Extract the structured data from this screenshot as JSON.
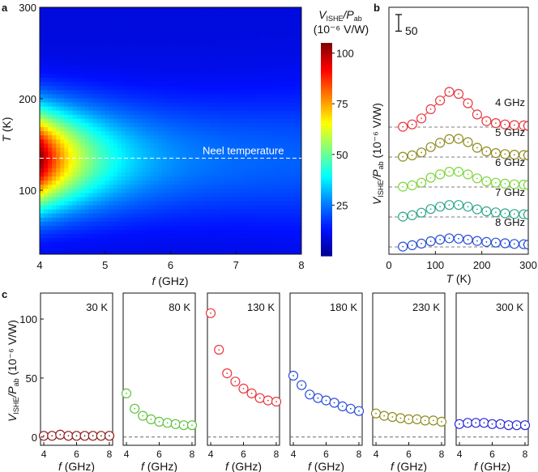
{
  "chart_data": [
    {
      "panel_label": "a",
      "type": "heatmap",
      "x_range": [
        4,
        8
      ],
      "y_range": [
        30,
        300
      ],
      "x_ticks": [
        4,
        5,
        6,
        7,
        8
      ],
      "y_ticks": [
        100,
        200,
        300
      ],
      "x_tick_labels": [
        "4",
        "5",
        "6",
        "7",
        "8"
      ],
      "y_tick_labels": [
        "100",
        "200",
        "300"
      ],
      "xlabel_var": "f",
      "xlabel_unit": " (GHz)",
      "ylabel_var": "T",
      "ylabel_unit": " (K)",
      "colorbar": {
        "title_var": "V",
        "title_sub": "ISHE",
        "title_sep": "/P",
        "title_sub2": "ab",
        "units": "(10⁻⁶ V/W)",
        "range": [
          0,
          105
        ],
        "ticks": [
          25,
          50,
          75,
          100
        ],
        "tick_labels": [
          "25",
          "50",
          "75",
          "100"
        ],
        "colors": [
          "#00008f",
          "#0010ff",
          "#0080ff",
          "#00ffff",
          "#80ff80",
          "#ffff00",
          "#ff8000",
          "#ff0000",
          "#800000"
        ]
      },
      "annotation": "Neel temperature",
      "annotation_T": 135,
      "peak": {
        "T": 135,
        "sigma_at_4GHz": 38,
        "sigma_at_8GHz": 52,
        "amplitude_at_4GHz": 105,
        "amplitude_at_8GHz": 22,
        "background": 9
      }
    },
    {
      "panel_label": "b",
      "type": "line",
      "xlabel_var": "T",
      "xlabel_unit": " (K)",
      "ylabel_var": "V",
      "ylabel_sub": "ISHE",
      "ylabel_sep": "/P",
      "ylabel_sub2": "ab",
      "ylabel_units": " (10⁻⁶ V/W)",
      "x_range": [
        0,
        300
      ],
      "x_ticks": [
        0,
        100,
        200,
        300
      ],
      "x_tick_labels": [
        "0",
        "100",
        "200",
        "300"
      ],
      "scale_bar_label": "50",
      "scale_bar_value": 50,
      "offset_step": 37,
      "x": [
        30,
        50,
        70,
        90,
        110,
        130,
        150,
        170,
        190,
        210,
        230,
        250,
        270,
        290,
        300
      ],
      "series": [
        {
          "name": "4 GHz",
          "color": "#e8373d",
          "values": [
            1,
            8,
            26,
            54,
            80,
            106,
            100,
            72,
            38,
            18,
            12,
            8,
            6,
            5,
            4
          ]
        },
        {
          "name": "5 GHz",
          "color": "#8f8a1f",
          "values": [
            1,
            5,
            14,
            30,
            43,
            54,
            55,
            45,
            28,
            17,
            12,
            9,
            7,
            6,
            5
          ]
        },
        {
          "name": "6 GHz",
          "color": "#7fd63c",
          "values": [
            1,
            5,
            13,
            28,
            38,
            46,
            46,
            38,
            26,
            17,
            13,
            10,
            8,
            7,
            6
          ]
        },
        {
          "name": "7 GHz",
          "color": "#2ea88a",
          "values": [
            1,
            5,
            13,
            24,
            31,
            36,
            36,
            31,
            23,
            17,
            14,
            11,
            9,
            8,
            7
          ]
        },
        {
          "name": "8 GHz",
          "color": "#2950d8",
          "values": [
            1,
            5,
            10,
            17,
            22,
            26,
            25,
            22,
            18,
            15,
            13,
            11,
            9,
            8,
            7
          ]
        }
      ]
    },
    {
      "panel_label": "c",
      "type": "scatter",
      "xlabel_var": "f",
      "xlabel_unit": " (GHz)",
      "ylabel_var": "V",
      "ylabel_sub": "ISHE",
      "ylabel_sep": "/P",
      "ylabel_sub2": "ab",
      "ylabel_units": " (10⁻⁶ V/W)",
      "x": [
        4.0,
        4.5,
        5.0,
        5.5,
        6.0,
        6.5,
        7.0,
        7.5,
        8.0
      ],
      "x_range": [
        3.8,
        8.2
      ],
      "y_range": [
        -7,
        122
      ],
      "x_ticks": [
        4,
        6,
        8
      ],
      "x_tick_labels": [
        "4",
        "6",
        "8"
      ],
      "y_ticks": [
        0,
        50,
        100
      ],
      "y_tick_labels": [
        "0",
        "50",
        "100"
      ],
      "panels": [
        {
          "label": "30 K",
          "color": "#8b1a1a",
          "values": [
            1,
            1,
            2,
            1,
            1,
            1,
            1,
            1,
            1
          ]
        },
        {
          "label": "80 K",
          "color": "#5fc23a",
          "values": [
            37,
            24,
            18,
            15,
            13,
            12,
            11,
            10,
            10
          ]
        },
        {
          "label": "130 K",
          "color": "#e8373d",
          "values": [
            105,
            74,
            54,
            47,
            41,
            37,
            33,
            31,
            30
          ]
        },
        {
          "label": "180 K",
          "color": "#2950d8",
          "values": [
            52,
            44,
            36,
            33,
            31,
            29,
            26,
            24,
            22
          ]
        },
        {
          "label": "230 K",
          "color": "#8f8a1f",
          "values": [
            20,
            18,
            17,
            16,
            15,
            15,
            14,
            14,
            13
          ]
        },
        {
          "label": "300 K",
          "color": "#2a2ad6",
          "values": [
            11,
            12,
            12,
            12,
            11,
            11,
            10,
            10,
            10
          ]
        }
      ]
    }
  ]
}
